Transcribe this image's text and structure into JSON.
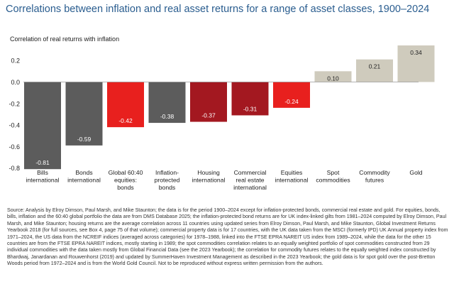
{
  "chart_data": {
    "type": "bar",
    "title": "Correlations between inflation and real asset returns for a range of asset classes, 1900–2024",
    "ylabel": "Correlation of real returns with inflation",
    "xlabel": "",
    "ylim": [
      -0.8,
      0.35
    ],
    "yticks": [
      0.2,
      0.0,
      -0.2,
      -0.4,
      -0.6,
      -0.8
    ],
    "ytick_labels": [
      "0.2",
      "0.0",
      "-0.2",
      "-0.4",
      "-0.6",
      "-0.8"
    ],
    "grid": false,
    "categories": [
      [
        "Bills",
        "international"
      ],
      [
        "Bonds",
        "international"
      ],
      [
        "Global 60:40",
        "equities:",
        "bonds"
      ],
      [
        "Inflation-",
        "protected",
        "bonds"
      ],
      [
        "Housing",
        "international"
      ],
      [
        "Commercial",
        "real estate",
        "international"
      ],
      [
        "Equities",
        "international"
      ],
      [
        "Spot",
        "commodities"
      ],
      [
        "Commodity",
        "futures"
      ],
      [
        "Gold"
      ]
    ],
    "values": [
      -0.81,
      -0.59,
      -0.42,
      -0.38,
      -0.37,
      -0.31,
      -0.24,
      0.1,
      0.21,
      0.34
    ],
    "value_labels": [
      "-0.81",
      "-0.59",
      "-0.42",
      "-0.38",
      "-0.37",
      "-0.31",
      "-0.24",
      "0.10",
      "0.21",
      "0.34"
    ],
    "colors": [
      "#5c5c5c",
      "#5c5c5c",
      "#e8201e",
      "#5c5c5c",
      "#a31820",
      "#a31820",
      "#e8201e",
      "#cfcbbd",
      "#cfcbbd",
      "#cfcbbd"
    ]
  },
  "source_text": "Source: Analysis by Elroy Dimson, Paul Marsh, and Mike Staunton; the data is for the period 1900–2024 except for inflation-protected bonds, commercial real estate and gold. For equities, bonds, bills, inflation and the 60:40 global portfolio the data are from DMS Database 2025; the inflation-protected bond returns are for UK index-linked gilts from 1981–2024 computed by Elroy Dimson, Paul Marsh, and Mike Staunton; housing returns are the average correlation across 11 countries using updated series from  Elroy Dimson, Paul Marsh, and Mike Staunton, Global Investment Returns Yearbook 2018 (for full sources, see Box 4, page 75 of that volume); commercial property data is for 17 countries, with the UK data taken from the MSCI (formerly IPD) UK Annual property index from 1971–2024, the US data from the NCREIF indices (averaged across categories) for 1978–1988, linked into the FTSE EPRA NAREIT US index from 1989–2024, while the data for the other 15 countries are from the FTSE EPRA NAREIT indices, mostly starting in 1989; the spot commodities correlation relates to an equally weighted portfolio of spot commodities constructed from 29 individual commodities with the data taken mostly from Global Financial Data (see the 2023 Yearbook); the correlation for commodity futures relates to the equally weighted index constructed by Bhardwaj, Janardanan and Rouwenhorst (2019) and updated by SummerHaven Investment Management as described in the 2023 Yearbook; the gold data is for spot gold over the post-Bretton Woods period from 1972–2024 and is from the World Gold Council. Not to be reproduced without express written permission from the authors."
}
